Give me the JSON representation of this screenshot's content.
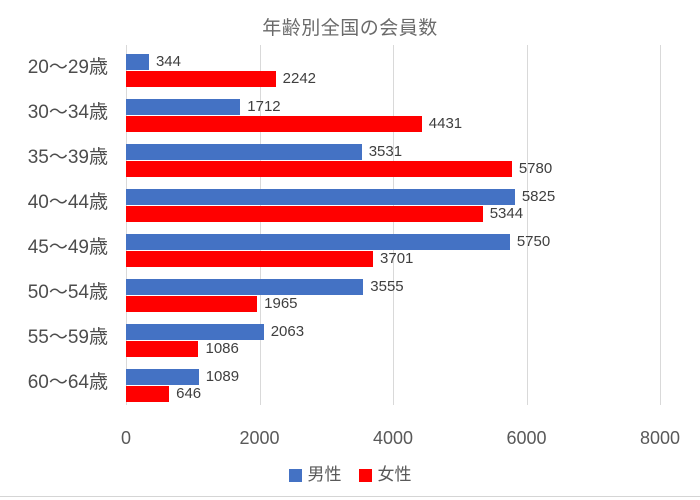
{
  "chart_data": {
    "type": "bar",
    "orientation": "horizontal",
    "title": "年齢別全国の会員数",
    "categories": [
      "20〜29歳",
      "30〜34歳",
      "35〜39歳",
      "40〜44歳",
      "45〜49歳",
      "50〜54歳",
      "55〜59歳",
      "60〜64歳"
    ],
    "series": [
      {
        "key": "male",
        "name": "男性",
        "color": "#4472C4",
        "values": [
          344,
          1712,
          3531,
          5825,
          5750,
          3555,
          2063,
          1089
        ]
      },
      {
        "key": "female",
        "name": "女性",
        "color": "#FF0000",
        "values": [
          2242,
          4431,
          5780,
          5344,
          3701,
          1965,
          1086,
          646
        ]
      }
    ],
    "xlim": [
      0,
      8000
    ],
    "x_ticks": [
      0,
      2000,
      4000,
      6000,
      8000
    ],
    "grid": true,
    "legend_position": "bottom",
    "data_labels": "outside-end"
  },
  "colors": {
    "background": "#FFFFFF",
    "gridline": "#D9D9D9",
    "title_text": "#6A6A6A",
    "category_text": "#4D4D4D",
    "tick_text": "#595959",
    "data_label_text": "#3F3F3F",
    "legend_text": "#595959",
    "window_border": "#D5D5D5"
  }
}
